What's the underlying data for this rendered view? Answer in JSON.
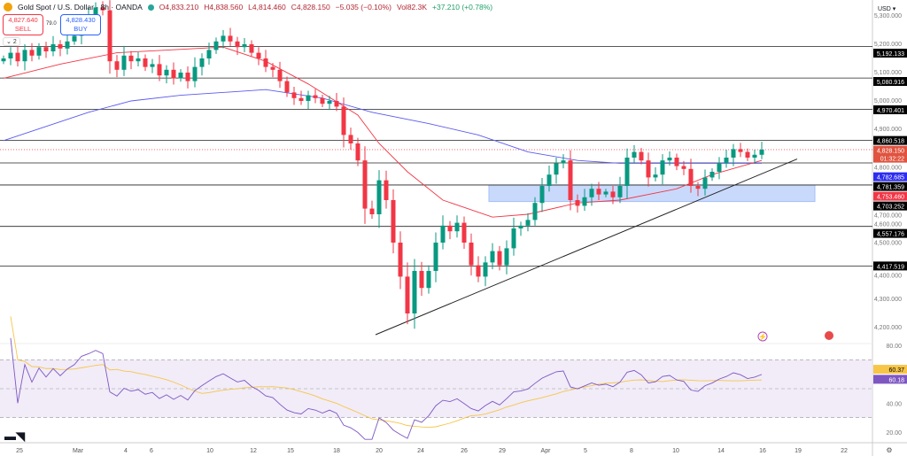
{
  "header": {
    "symbol": "Gold Spot / U.S. Dollar · 8h · OANDA",
    "open": "O4,833.210",
    "high": "H4,838.560",
    "low": "L4,814.460",
    "close": "C4,828.150",
    "change": "−5.035 (−0.10%)",
    "volume": "Vol82.3K",
    "indicator": "+37.210 (+0.78%)"
  },
  "trade": {
    "sell_price": "4,827.640",
    "sell_label": "SELL",
    "spread": "79.0",
    "buy_price": "4,828.430",
    "buy_label": "BUY",
    "collapse_count": "2"
  },
  "axis": {
    "currency": "USD"
  },
  "logo_text": "17",
  "colors": {
    "up": "#089981",
    "down": "#f23645",
    "ma_fast": "#f23645",
    "ma_slow": "#5b5bf0",
    "zone": "#bcd0fb",
    "rsi": "#7e57c2",
    "rsi_ma": "#f7c548"
  },
  "chart_data": {
    "type": "candlestick",
    "x_tick_labels": [
      "25",
      "Mar",
      "4",
      "6",
      "10",
      "12",
      "15",
      "18",
      "20",
      "24",
      "26",
      "29",
      "Apr",
      "5",
      "8",
      "10",
      "14",
      "16",
      "19",
      "22"
    ],
    "y_tick_labels": [
      "5,300.000",
      "5,200.000",
      "5,100.000",
      "5,000.000",
      "4,900.000",
      "4,800.000",
      "4,700.000",
      "4,600.000",
      "4,500.000",
      "4,400.000",
      "4,300.000",
      "4,200.000"
    ],
    "ylim": [
      4150,
      5356
    ],
    "closes": [
      5150,
      5170,
      5140,
      5180,
      5160,
      5190,
      5175,
      5200,
      5185,
      5210,
      5230,
      5280,
      5300,
      5330,
      5320,
      5140,
      5110,
      5160,
      5140,
      5150,
      5120,
      5130,
      5090,
      5110,
      5080,
      5100,
      5070,
      5120,
      5150,
      5180,
      5210,
      5230,
      5210,
      5190,
      5200,
      5170,
      5150,
      5120,
      5110,
      5070,
      5030,
      5010,
      5000,
      5020,
      5010,
      4990,
      5000,
      4980,
      4880,
      4850,
      4790,
      4620,
      4600,
      4720,
      4650,
      4500,
      4380,
      4250,
      4400,
      4340,
      4400,
      4500,
      4560,
      4540,
      4570,
      4500,
      4420,
      4380,
      4430,
      4470,
      4420,
      4480,
      4550,
      4560,
      4580,
      4640,
      4700,
      4740,
      4780,
      4790,
      4650,
      4630,
      4660,
      4690,
      4670,
      4680,
      4660,
      4700,
      4800,
      4820,
      4790,
      4730,
      4740,
      4790,
      4800,
      4770,
      4760,
      4700,
      4690,
      4730,
      4750,
      4780,
      4800,
      4830,
      4820,
      4800,
      4810,
      4828.15
    ],
    "ma_fast": [
      [
        0,
        5080
      ],
      [
        8,
        5130
      ],
      [
        16,
        5170
      ],
      [
        31,
        5190
      ],
      [
        37,
        5140
      ],
      [
        43,
        5060
      ],
      [
        50,
        4950
      ],
      [
        53,
        4850
      ],
      [
        57,
        4750
      ],
      [
        62,
        4650
      ],
      [
        69,
        4590
      ],
      [
        74,
        4600
      ],
      [
        81,
        4640
      ],
      [
        87,
        4650
      ],
      [
        95,
        4690
      ],
      [
        100,
        4740
      ],
      [
        107,
        4790
      ]
    ],
    "ma_slow": [
      [
        0,
        4860
      ],
      [
        12,
        4960
      ],
      [
        18,
        5000
      ],
      [
        25,
        5020
      ],
      [
        37,
        5040
      ],
      [
        45,
        5010
      ],
      [
        52,
        4960
      ],
      [
        60,
        4920
      ],
      [
        67,
        4880
      ],
      [
        74,
        4820
      ],
      [
        81,
        4790
      ],
      [
        87,
        4780
      ],
      [
        95,
        4780
      ],
      [
        107,
        4780
      ]
    ],
    "levels": [
      {
        "price": 5192.133,
        "label": "5,192.133"
      },
      {
        "price": 5080.916,
        "label": "5,080.916"
      },
      {
        "price": 4970.401,
        "label": "4,970.401"
      },
      {
        "price": 4860.518,
        "label": "4,860.518"
      },
      {
        "price": 4781.359,
        "label": "4,781.359"
      },
      {
        "price": 4703.252,
        "label": "4,703.252"
      },
      {
        "price": 4557.176,
        "label": "4,557.176"
      },
      {
        "price": 4417.519,
        "label": "4,417.519"
      }
    ],
    "price_tags": [
      {
        "label": "4,828.150",
        "sub": "01:32:22",
        "price": 4828.15,
        "color": "#e0533f"
      },
      {
        "label": "4,782.685",
        "price": 4782.685,
        "color": "#2d2df0"
      },
      {
        "label": "4,753.460",
        "price": 4753.46,
        "color": "#f23645"
      }
    ],
    "zone": {
      "from_index": 69,
      "to_index": 115,
      "top": 4703,
      "bottom": 4645
    },
    "trendline": [
      [
        52.5,
        4175
      ],
      [
        112,
        4795
      ]
    ],
    "rsi": {
      "ylim": [
        15,
        85
      ],
      "ticks": [
        "80.00",
        "40.00",
        "20.00"
      ],
      "band": [
        30,
        70
      ],
      "mid": 50,
      "last": "60.18",
      "last_ma": "60.37"
    }
  }
}
